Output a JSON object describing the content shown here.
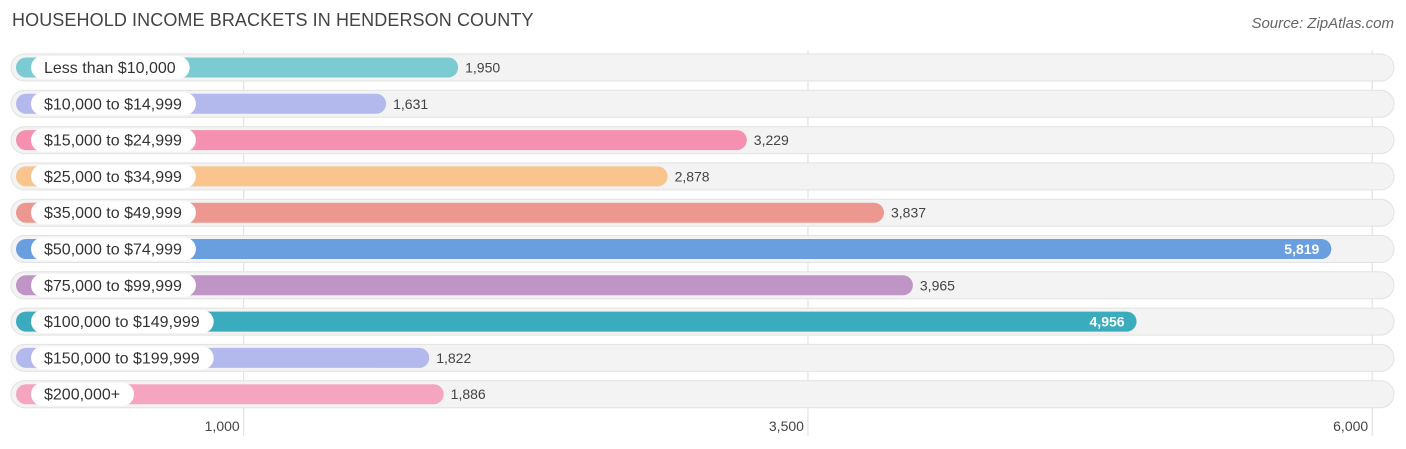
{
  "chart_data": {
    "type": "bar",
    "orientation": "horizontal",
    "title": "HOUSEHOLD INCOME BRACKETS IN HENDERSON COUNTY",
    "source": "Source: ZipAtlas.com",
    "categories": [
      "Less than $10,000",
      "$10,000 to $14,999",
      "$15,000 to $24,999",
      "$25,000 to $34,999",
      "$35,000 to $49,999",
      "$50,000 to $74,999",
      "$75,000 to $99,999",
      "$100,000 to $149,999",
      "$150,000 to $199,999",
      "$200,000+"
    ],
    "values": [
      1950,
      1631,
      3229,
      2878,
      3837,
      5819,
      3965,
      4956,
      1822,
      1886
    ],
    "value_labels": [
      "1,950",
      "1,631",
      "3,229",
      "2,878",
      "3,837",
      "5,819",
      "3,965",
      "4,956",
      "1,822",
      "1,886"
    ],
    "colors": [
      "#7ccbd3",
      "#b3b9ec",
      "#f590b0",
      "#f9c48e",
      "#ec9890",
      "#6a9fdf",
      "#bf95c5",
      "#3bacbd",
      "#b3b9ec",
      "#f6a5c0"
    ],
    "xticks": [
      1000,
      3500,
      6000
    ],
    "xtick_labels": [
      "1,000",
      "3,500",
      "6,000"
    ],
    "xlim": [
      0,
      6110
    ],
    "xlabel": "",
    "ylabel": ""
  }
}
